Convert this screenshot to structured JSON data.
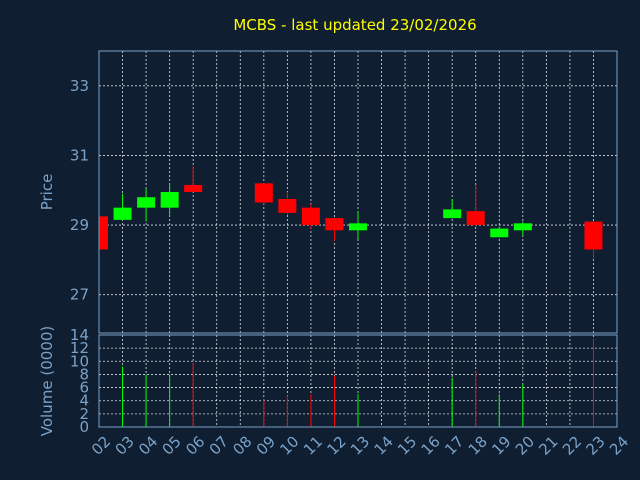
{
  "chart_data": {
    "type": "candlestick",
    "title": "MCBS - last updated 23/02/2026",
    "xlabel": "Day",
    "price_ylabel": "Price",
    "volume_ylabel": "Volume (0000)",
    "x_ticks": [
      "02",
      "03",
      "04",
      "05",
      "06",
      "07",
      "08",
      "09",
      "10",
      "11",
      "12",
      "13",
      "14",
      "15",
      "16",
      "17",
      "18",
      "19",
      "20",
      "21",
      "22",
      "23",
      "24"
    ],
    "price_ticks": [
      27,
      29,
      31,
      33
    ],
    "price_ylim": [
      25.9,
      34.0
    ],
    "volume_ticks": [
      0,
      2,
      4,
      6,
      8,
      10,
      12,
      14
    ],
    "volume_ylim": [
      0,
      14
    ],
    "grid": true,
    "colors": {
      "up": "#00ff00",
      "down": "#ff0000",
      "background": "#0f1e30",
      "title": "#ffff00",
      "axis": "#7ba2c8"
    },
    "candles": [
      {
        "day": 2,
        "open": 29.25,
        "high": 29.25,
        "low": 28.3,
        "close": 28.3,
        "volume": 0
      },
      {
        "day": 3,
        "open": 29.15,
        "high": 29.9,
        "low": 29.15,
        "close": 29.5,
        "volume": 9.2
      },
      {
        "day": 4,
        "open": 29.5,
        "high": 30.05,
        "low": 29.1,
        "close": 29.8,
        "volume": 8.0
      },
      {
        "day": 5,
        "open": 29.5,
        "high": 30.2,
        "low": 29.3,
        "close": 29.95,
        "volume": 8.0
      },
      {
        "day": 6,
        "open": 30.15,
        "high": 30.7,
        "low": 29.95,
        "close": 29.95,
        "volume": 9.8
      },
      {
        "day": 9,
        "open": 30.2,
        "high": 30.2,
        "low": 29.6,
        "close": 29.65,
        "volume": 4.2
      },
      {
        "day": 10,
        "open": 29.75,
        "high": 29.95,
        "low": 29.3,
        "close": 29.35,
        "volume": 4.8
      },
      {
        "day": 11,
        "open": 29.5,
        "high": 29.6,
        "low": 28.9,
        "close": 29.0,
        "volume": 5.0
      },
      {
        "day": 12,
        "open": 29.2,
        "high": 29.2,
        "low": 28.55,
        "close": 28.85,
        "volume": 7.8
      },
      {
        "day": 13,
        "open": 28.85,
        "high": 29.4,
        "low": 28.6,
        "close": 29.05,
        "volume": 5.0
      },
      {
        "day": 17,
        "open": 29.2,
        "high": 29.75,
        "low": 29.2,
        "close": 29.45,
        "volume": 7.5
      },
      {
        "day": 18,
        "open": 29.4,
        "high": 30.15,
        "low": 29.0,
        "close": 29.0,
        "volume": 8.5
      },
      {
        "day": 19,
        "open": 28.65,
        "high": 28.95,
        "low": 28.65,
        "close": 28.9,
        "volume": 5.0
      },
      {
        "day": 20,
        "open": 28.85,
        "high": 29.1,
        "low": 28.7,
        "close": 29.05,
        "volume": 6.5
      },
      {
        "day": 23,
        "open": 29.1,
        "high": 29.1,
        "low": 28.05,
        "close": 28.3,
        "volume": 13.5
      }
    ]
  }
}
